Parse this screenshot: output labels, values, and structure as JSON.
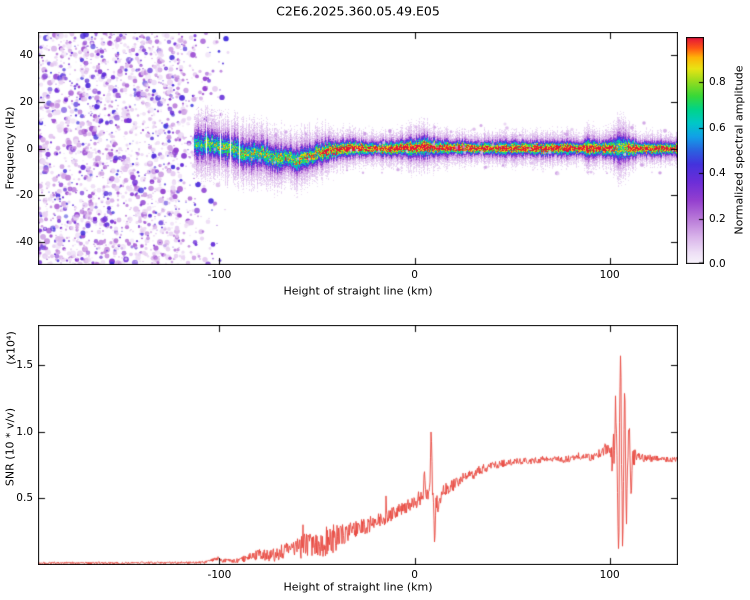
{
  "figure": {
    "title": "C2E6.2025.360.05.49.E05",
    "background_color": "#ffffff"
  },
  "chart_data": [
    {
      "id": "spectrogram",
      "type": "heatmap",
      "title": "C2E6.2025.360.05.49.E05",
      "xlabel": "Height of straight line (km)",
      "ylabel": "Frequency (Hz)",
      "xlim": [
        -193,
        135
      ],
      "ylim": [
        -50,
        50
      ],
      "xticks": [
        {
          "value": -100,
          "label": "-100"
        },
        {
          "value": 0,
          "label": "0"
        },
        {
          "value": 100,
          "label": "100"
        }
      ],
      "yticks": [
        {
          "value": 40,
          "label": "40"
        },
        {
          "value": 20,
          "label": "20"
        },
        {
          "value": 0,
          "label": "0"
        },
        {
          "value": -20,
          "label": "-20"
        },
        {
          "value": -40,
          "label": "-40"
        }
      ],
      "grid": false,
      "colorbar": {
        "label": "Normalized spectral amplitude",
        "range": [
          0,
          1
        ],
        "ticks": [
          {
            "value": 0.0,
            "label": "0.0"
          },
          {
            "value": 0.2,
            "label": "0.2"
          },
          {
            "value": 0.4,
            "label": "0.4"
          },
          {
            "value": 0.6,
            "label": "0.6"
          },
          {
            "value": 0.8,
            "label": "0.8"
          }
        ],
        "colormap": [
          [
            0,
            "#f8f4fc"
          ],
          [
            0.05,
            "#eedff6"
          ],
          [
            0.12,
            "#d9b3ea"
          ],
          [
            0.2,
            "#b878d8"
          ],
          [
            0.28,
            "#9440cf"
          ],
          [
            0.36,
            "#6d2ed8"
          ],
          [
            0.44,
            "#4433dd"
          ],
          [
            0.5,
            "#2b62e0"
          ],
          [
            0.56,
            "#12a0e8"
          ],
          [
            0.62,
            "#00c8c8"
          ],
          [
            0.68,
            "#00d48a"
          ],
          [
            0.74,
            "#38d838"
          ],
          [
            0.8,
            "#90dc20"
          ],
          [
            0.86,
            "#e8e414"
          ],
          [
            0.91,
            "#ffb408"
          ],
          [
            0.95,
            "#ff5814"
          ],
          [
            1,
            "#e2103c"
          ]
        ]
      },
      "content": {
        "description": "Purple speckle noise fills all frequencies for heights below about -95 km; a narrow Doppler trace near 0 Hz emerges around -112 km, chaotic blue-green and wavy (dipping to about -5 Hz near -60 km) until about -40 km, then a thin high-amplitude red ridge with green/blue fringe and lavender halo continues to the right edge, bulging near 5 km, 90 km and 105 km.",
        "noise_region": {
          "x_range": [
            -193,
            -92
          ],
          "fade_from": -122,
          "amplitude_range": [
            0.05,
            0.45
          ]
        },
        "band": {
          "x_start": -113,
          "center_hz": [
            [
              -113,
              1.5
            ],
            [
              -105,
              2
            ],
            [
              -100,
              1
            ],
            [
              -95,
              0.5
            ],
            [
              -90,
              -1
            ],
            [
              -85,
              -2.5
            ],
            [
              -80,
              -1.5
            ],
            [
              -75,
              -3
            ],
            [
              -70,
              -4.5
            ],
            [
              -65,
              -3.5
            ],
            [
              -60,
              -5
            ],
            [
              -55,
              -3.5
            ],
            [
              -50,
              -2
            ],
            [
              -45,
              -1
            ],
            [
              -40,
              -0.5
            ],
            [
              -35,
              0.2
            ],
            [
              -30,
              0.5
            ],
            [
              -25,
              0
            ],
            [
              -10,
              0.3
            ],
            [
              0,
              0.5
            ],
            [
              5,
              1
            ],
            [
              10,
              0.5
            ],
            [
              60,
              0.2
            ],
            [
              100,
              0.3
            ],
            [
              135,
              0
            ]
          ],
          "sigma_hz": [
            [
              -113,
              3.2
            ],
            [
              -95,
              3.0
            ],
            [
              -80,
              2.8
            ],
            [
              -60,
              2.6
            ],
            [
              -45,
              2.2
            ],
            [
              -40,
              1.8
            ],
            [
              -20,
              1.5
            ],
            [
              -3,
              1.9
            ],
            [
              5,
              2.5
            ],
            [
              9,
              1.9
            ],
            [
              30,
              1.5
            ],
            [
              85,
              1.6
            ],
            [
              90,
              2.1
            ],
            [
              95,
              1.5
            ],
            [
              102,
              2.2
            ],
            [
              106,
              3.3
            ],
            [
              110,
              2.2
            ],
            [
              114,
              1.6
            ],
            [
              135,
              1.5
            ]
          ],
          "core_amplitude": [
            [
              -113,
              0.55
            ],
            [
              -100,
              0.6
            ],
            [
              -90,
              0.62
            ],
            [
              -80,
              0.65
            ],
            [
              -70,
              0.68
            ],
            [
              -60,
              0.72
            ],
            [
              -50,
              0.78
            ],
            [
              -45,
              0.88
            ],
            [
              -40,
              0.96
            ],
            [
              0,
              0.97
            ],
            [
              100,
              0.97
            ],
            [
              103,
              0.75
            ],
            [
              106,
              0.65
            ],
            [
              109,
              0.85
            ],
            [
              112,
              0.96
            ],
            [
              135,
              0.96
            ]
          ]
        }
      }
    },
    {
      "id": "snr",
      "type": "line",
      "series_name": "SNR",
      "series_color": "#e8453c",
      "xlabel": "Height of straight line (km)",
      "ylabel": "SNR (10 * v/v)",
      "y_scale_label": "(x10⁴)",
      "xlim": [
        -193,
        135
      ],
      "ylim": [
        0,
        1.8
      ],
      "xticks": [
        {
          "value": -100,
          "label": "-100"
        },
        {
          "value": 0,
          "label": "0"
        },
        {
          "value": 100,
          "label": "100"
        }
      ],
      "yticks": [
        {
          "value": 0.5,
          "label": "0.5"
        },
        {
          "value": 1.0,
          "label": "1.0"
        },
        {
          "value": 1.5,
          "label": "1.5"
        }
      ],
      "grid": false,
      "envelope": [
        [
          -193,
          0.015
        ],
        [
          -150,
          0.015
        ],
        [
          -120,
          0.018
        ],
        [
          -107,
          0.02
        ],
        [
          -101,
          0.05
        ],
        [
          -98,
          0.03
        ],
        [
          -92,
          0.03
        ],
        [
          -86,
          0.05
        ],
        [
          -80,
          0.08
        ],
        [
          -74,
          0.07
        ],
        [
          -69,
          0.1
        ],
        [
          -64,
          0.12
        ],
        [
          -59,
          0.13
        ],
        [
          -54,
          0.16
        ],
        [
          -49,
          0.15
        ],
        [
          -44,
          0.18
        ],
        [
          -39,
          0.22
        ],
        [
          -34,
          0.24
        ],
        [
          -29,
          0.27
        ],
        [
          -24,
          0.3
        ],
        [
          -19,
          0.33
        ],
        [
          -14,
          0.36
        ],
        [
          -9,
          0.4
        ],
        [
          -4,
          0.44
        ],
        [
          0,
          0.46
        ],
        [
          3,
          0.5
        ],
        [
          6,
          0.52
        ],
        [
          9,
          0.54
        ],
        [
          12,
          0.45
        ],
        [
          15,
          0.56
        ],
        [
          20,
          0.6
        ],
        [
          25,
          0.65
        ],
        [
          30,
          0.68
        ],
        [
          35,
          0.72
        ],
        [
          40,
          0.74
        ],
        [
          45,
          0.76
        ],
        [
          50,
          0.77
        ],
        [
          55,
          0.78
        ],
        [
          60,
          0.78
        ],
        [
          65,
          0.79
        ],
        [
          70,
          0.8
        ],
        [
          75,
          0.79
        ],
        [
          80,
          0.8
        ],
        [
          85,
          0.82
        ],
        [
          90,
          0.8
        ],
        [
          95,
          0.85
        ],
        [
          100,
          0.88
        ],
        [
          102,
          0.82
        ],
        [
          109,
          0.85
        ],
        [
          112,
          0.82
        ],
        [
          118,
          0.8
        ],
        [
          125,
          0.8
        ],
        [
          132,
          0.79
        ],
        [
          135,
          0.79
        ]
      ],
      "noise_amplitude": [
        [
          -193,
          0.008
        ],
        [
          -110,
          0.008
        ],
        [
          -100,
          0.015
        ],
        [
          -90,
          0.02
        ],
        [
          -80,
          0.04
        ],
        [
          -70,
          0.06
        ],
        [
          -60,
          0.09
        ],
        [
          -50,
          0.09
        ],
        [
          -45,
          0.12
        ],
        [
          -40,
          0.1
        ],
        [
          -30,
          0.07
        ],
        [
          -20,
          0.06
        ],
        [
          -10,
          0.05
        ],
        [
          0,
          0.05
        ],
        [
          10,
          0.06
        ],
        [
          20,
          0.045
        ],
        [
          30,
          0.04
        ],
        [
          50,
          0.025
        ],
        [
          70,
          0.025
        ],
        [
          90,
          0.03
        ],
        [
          100,
          0.05
        ],
        [
          103,
          0.3
        ],
        [
          105,
          0.45
        ],
        [
          107,
          0.35
        ],
        [
          109,
          0.22
        ],
        [
          111,
          0.1
        ],
        [
          115,
          0.03
        ],
        [
          135,
          0.02
        ]
      ],
      "spikes": [
        [
          5,
          0.72
        ],
        [
          8.5,
          1.06
        ],
        [
          10.3,
          0.13
        ],
        [
          103,
          1.28
        ],
        [
          104.5,
          0.12
        ],
        [
          105.6,
          1.65
        ],
        [
          106.6,
          0.08
        ],
        [
          107.6,
          1.3
        ],
        [
          108.6,
          0.3
        ],
        [
          110,
          1.05
        ],
        [
          111,
          0.5
        ]
      ]
    }
  ]
}
